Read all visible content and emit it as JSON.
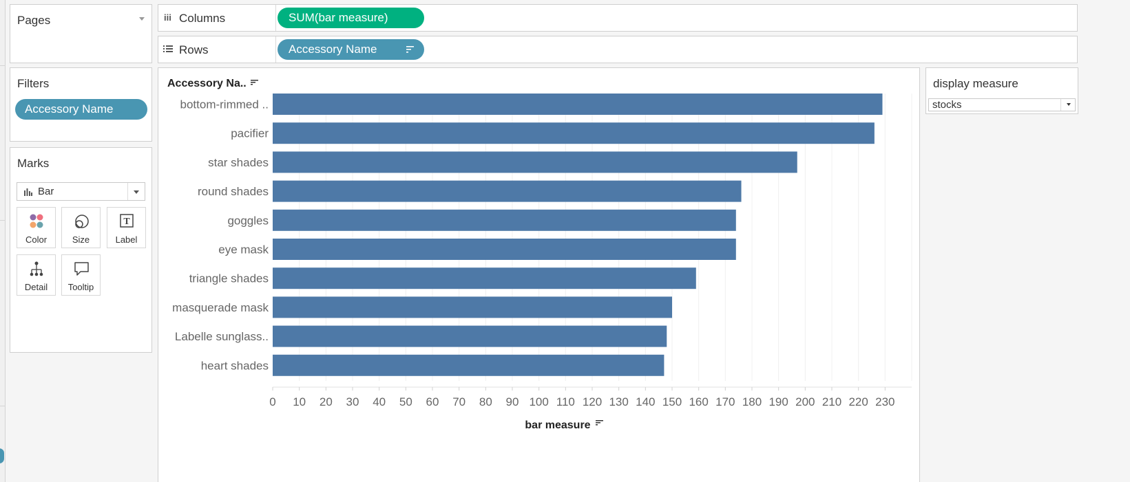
{
  "shelves": {
    "pages_title": "Pages",
    "columns_label": "Columns",
    "columns_pill": "SUM(bar measure)",
    "rows_label": "Rows",
    "rows_pill": "Accessory Name"
  },
  "filters": {
    "title": "Filters",
    "pill": "Accessory Name"
  },
  "marks": {
    "title": "Marks",
    "mark_type": "Bar",
    "cards": [
      {
        "label": "Color",
        "icon": "color-icon"
      },
      {
        "label": "Size",
        "icon": "size-icon"
      },
      {
        "label": "Label",
        "icon": "label-icon"
      },
      {
        "label": "Detail",
        "icon": "detail-icon"
      },
      {
        "label": "Tooltip",
        "icon": "tooltip-icon"
      }
    ]
  },
  "parameter": {
    "title": "display measure",
    "value": "stocks"
  },
  "colors": {
    "bar": "#4e79a7",
    "green_pill": "#00b180",
    "blue_pill": "#4996b2"
  },
  "chart_data": {
    "type": "bar",
    "orientation": "horizontal",
    "row_header": "Accessory Na..",
    "categories": [
      "bottom-rimmed ..",
      "pacifier",
      "star shades",
      "round shades",
      "goggles",
      "eye mask",
      "triangle shades",
      "masquerade mask",
      "Labelle sunglass..",
      "heart shades"
    ],
    "values": [
      229,
      226,
      197,
      176,
      174,
      174,
      159,
      150,
      148,
      147
    ],
    "xlabel": "bar measure",
    "xlim": [
      0,
      240
    ],
    "xticks": [
      0,
      10,
      20,
      30,
      40,
      50,
      60,
      70,
      80,
      90,
      100,
      110,
      120,
      130,
      140,
      150,
      160,
      170,
      180,
      190,
      200,
      210,
      220,
      230
    ],
    "grid": "vertical",
    "sorted": "descending"
  }
}
